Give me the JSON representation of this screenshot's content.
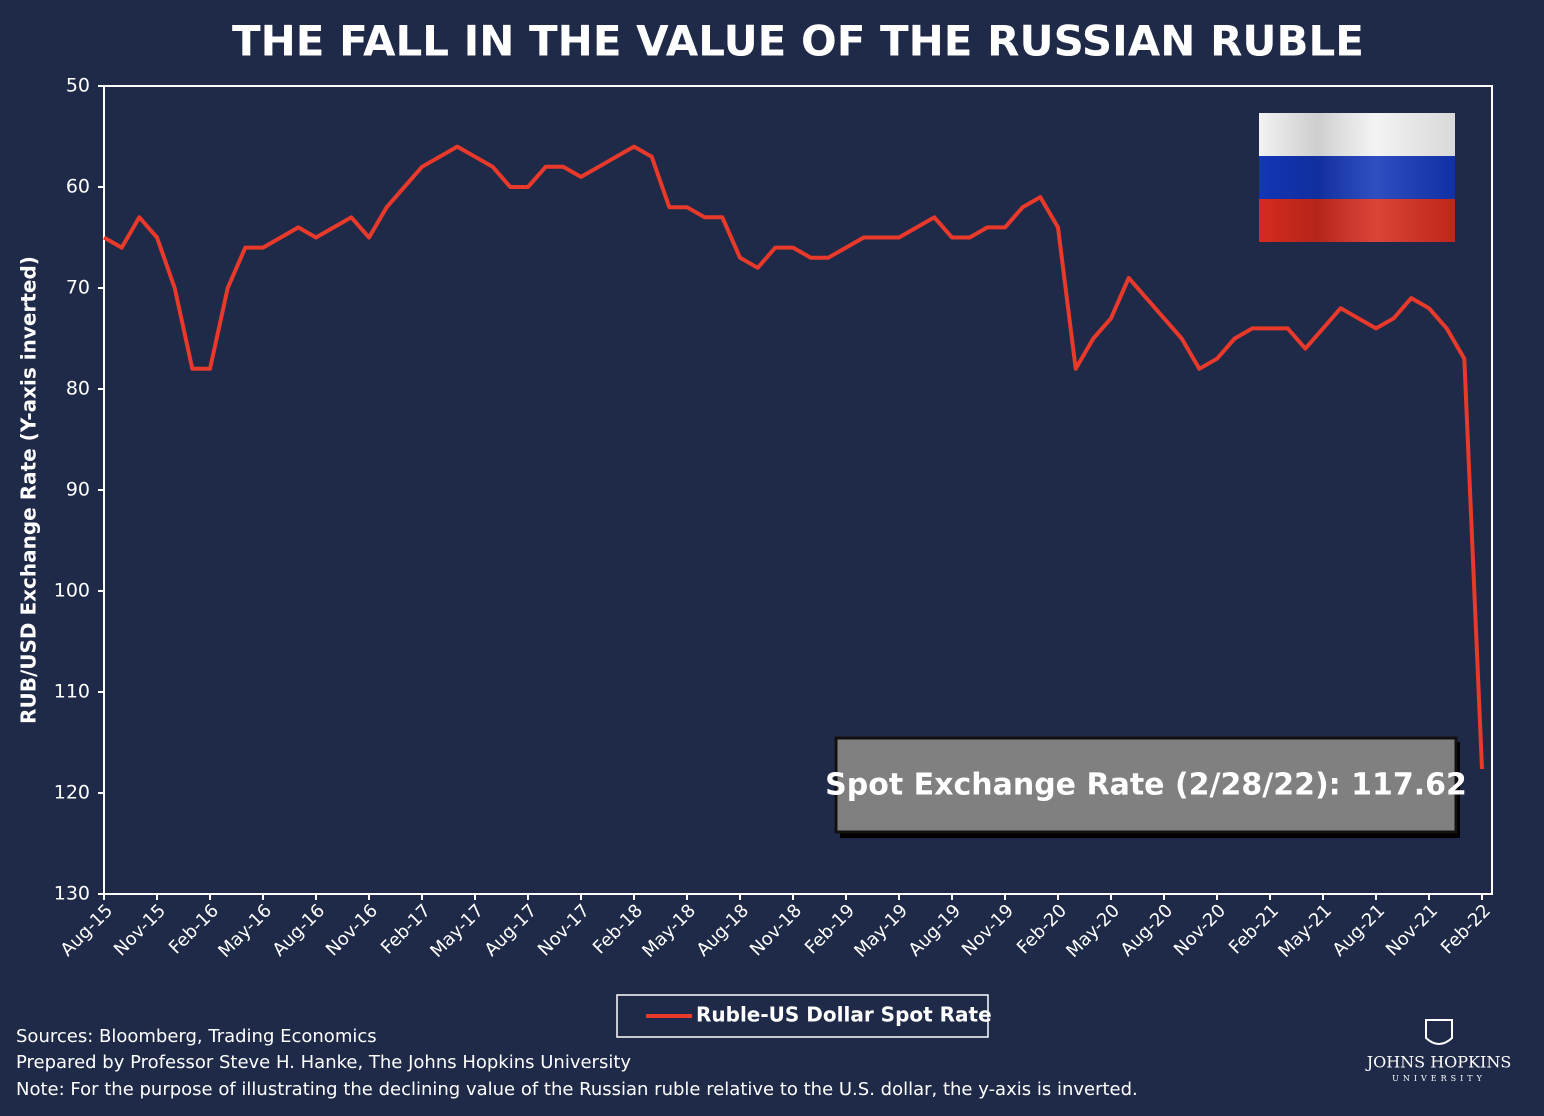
{
  "chart_data": {
    "type": "line",
    "title": "THE FALL IN THE VALUE OF THE RUSSIAN RUBLE",
    "y_label": "RUB/USD Exchange Rate (Y-axis inverted)",
    "categories": [
      "Aug-15",
      null,
      null,
      "Nov-15",
      null,
      null,
      "Feb-16",
      null,
      null,
      "May-16",
      null,
      null,
      "Aug-16",
      null,
      null,
      "Nov-16",
      null,
      null,
      "Feb-17",
      null,
      null,
      "May-17",
      null,
      null,
      "Aug-17",
      null,
      null,
      "Nov-17",
      null,
      null,
      "Feb-18",
      null,
      null,
      "May-18",
      null,
      null,
      "Aug-18",
      null,
      null,
      "Nov-18",
      null,
      null,
      "Feb-19",
      null,
      null,
      "May-19",
      null,
      null,
      "Aug-19",
      null,
      null,
      "Nov-19",
      null,
      null,
      "Feb-20",
      null,
      null,
      "May-20",
      null,
      null,
      "Aug-20",
      null,
      null,
      "Nov-20",
      null,
      null,
      "Feb-21",
      null,
      null,
      "May-21",
      null,
      null,
      "Aug-21",
      null,
      null,
      "Nov-21",
      null,
      null,
      "Feb-22"
    ],
    "series": [
      {
        "name": "Ruble-US Dollar Spot Rate",
        "color": "#e8392a",
        "values": [
          65,
          66,
          63,
          65,
          70,
          78,
          78,
          70,
          66,
          66,
          65,
          64,
          65,
          64,
          63,
          65,
          62,
          60,
          58,
          57,
          56,
          57,
          58,
          60,
          60,
          58,
          58,
          59,
          58,
          57,
          56,
          57,
          62,
          62,
          63,
          63,
          67,
          68,
          66,
          66,
          67,
          67,
          66,
          65,
          65,
          65,
          64,
          63,
          65,
          65,
          64,
          64,
          62,
          61,
          64,
          78,
          75,
          73,
          69,
          71,
          73,
          75,
          78,
          77,
          75,
          74,
          74,
          74,
          76,
          74,
          72,
          73,
          74,
          73,
          71,
          72,
          74,
          77,
          117.62
        ]
      }
    ],
    "ylim": [
      50,
      130
    ],
    "y_inverted": true,
    "yticks": [
      50,
      60,
      70,
      80,
      90,
      100,
      110,
      120,
      130
    ],
    "annotation": "Spot Exchange Rate (2/28/22): 117.62",
    "sources": [
      "Sources: Bloomberg, Trading Economics",
      "Prepared by Professor Steve H. Hanke, The Johns Hopkins University",
      "Note: For the purpose of illustrating the declining value of the Russian ruble relative to the U.S. dollar, the y-axis is inverted."
    ],
    "logo": {
      "name": "JOHNS HOPKINS",
      "sub": "UNIVERSITY"
    }
  }
}
